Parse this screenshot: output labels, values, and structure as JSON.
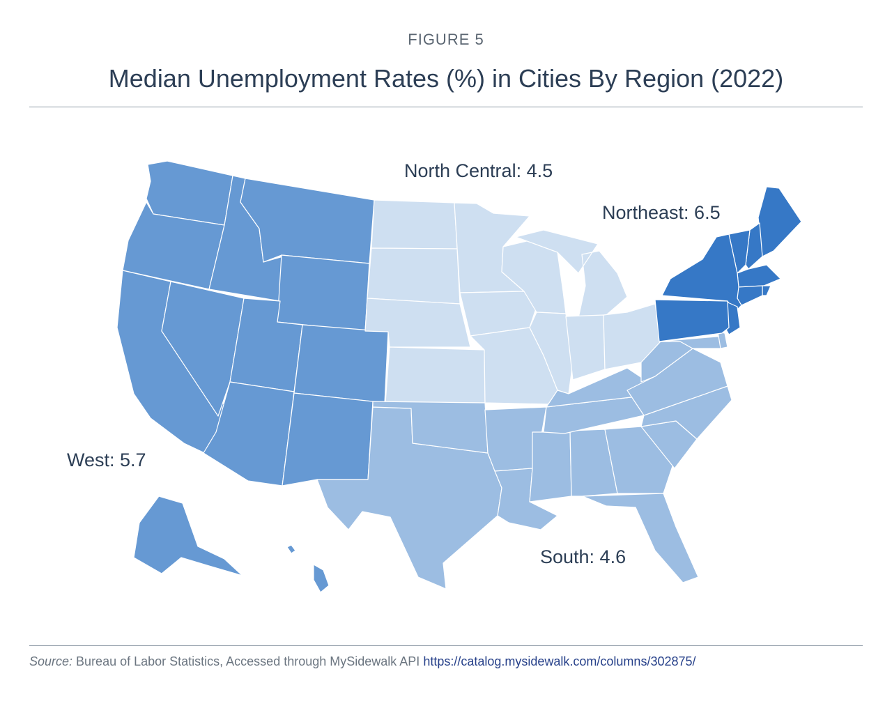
{
  "figure_label": "FIGURE 5",
  "title": "Median Unemployment Rates (%) in Cities By Region (2022)",
  "colors": {
    "west": "#6699d3",
    "north_central": "#cedff1",
    "south": "#9cbde2",
    "northeast": "#3678c6",
    "border": "#ffffff"
  },
  "regions": [
    {
      "key": "west",
      "name": "West",
      "value": 5.7,
      "label": "West: 5.7"
    },
    {
      "key": "north_central",
      "name": "North Central",
      "value": 4.5,
      "label": "North Central: 4.5"
    },
    {
      "key": "south",
      "name": "South",
      "value": 4.6,
      "label": "South: 4.6"
    },
    {
      "key": "northeast",
      "name": "Northeast",
      "value": 6.5,
      "label": "Northeast: 6.5"
    }
  ],
  "source": {
    "prefix": "Source:",
    "text": " Bureau of Labor Statistics, Accessed through MySidewalk API ",
    "link": "https://catalog.mysidewalk.com/columns/302875/"
  }
}
